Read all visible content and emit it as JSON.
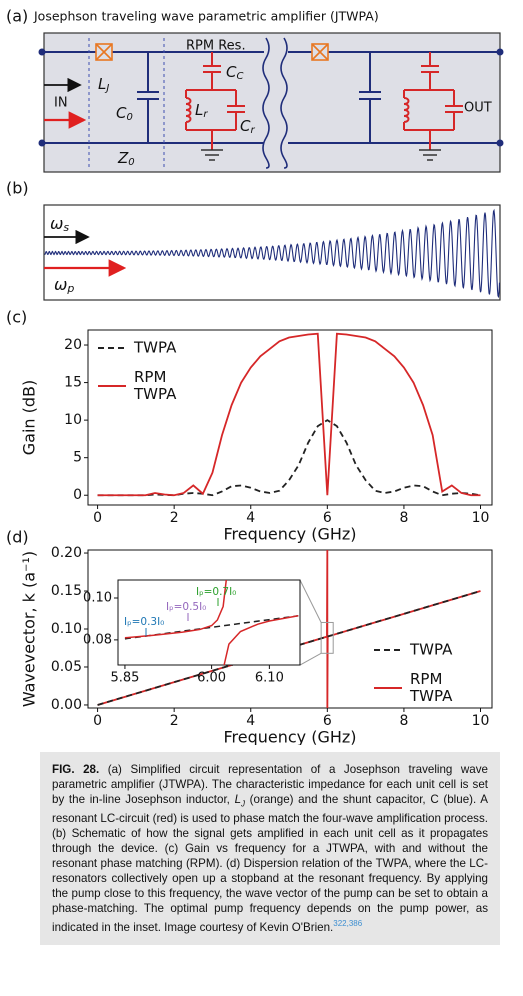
{
  "figure": {
    "panel_a": {
      "label": "(a)",
      "title": "Josephson traveling wave parametric amplifier (JTWPA)",
      "rpm_label": "RPM Res.",
      "in_label": "IN",
      "out_label": "OUT",
      "symbols": [
        {
          "main": "L",
          "sub": "J"
        },
        {
          "main": "C",
          "sub": "0"
        },
        {
          "main": "C",
          "sub": "C"
        },
        {
          "main": "L",
          "sub": "r"
        },
        {
          "main": "C",
          "sub": "r"
        },
        {
          "main": "Z",
          "sub": "0"
        }
      ]
    },
    "panel_b": {
      "label": "(b)",
      "signal": {
        "main": "ω",
        "sub": "s"
      },
      "pump": {
        "main": "ω",
        "sub": "p"
      }
    }
  },
  "chart_data": [
    {
      "type": "line",
      "panel_label": "(c)",
      "xlabel": "Frequency (GHz)",
      "ylabel": "Gain (dB)",
      "x": [
        0,
        0.25,
        0.5,
        0.75,
        1,
        1.25,
        1.5,
        1.75,
        2,
        2.25,
        2.5,
        2.75,
        3,
        3.25,
        3.5,
        3.75,
        4,
        4.25,
        4.5,
        4.75,
        5,
        5.25,
        5.5,
        5.75,
        6,
        6.25,
        6.5,
        6.75,
        7,
        7.25,
        7.5,
        7.75,
        8,
        8.25,
        8.5,
        8.75,
        9,
        9.25,
        9.5,
        9.75,
        10
      ],
      "xlim": [
        -0.25,
        10.3
      ],
      "ylim": [
        -1.3,
        22
      ],
      "xticks": [
        0,
        2,
        4,
        6,
        8,
        10
      ],
      "yticks": [
        0,
        5,
        10,
        15,
        20
      ],
      "legend": "upper left",
      "series": [
        {
          "name": "TWPA",
          "color": "#222222",
          "dash": "dashed",
          "values": [
            0,
            0,
            0,
            0,
            0,
            0,
            0.1,
            0.05,
            0,
            0.2,
            0.3,
            0.2,
            0,
            0.5,
            1.2,
            1.3,
            1.0,
            0.5,
            0.3,
            0.6,
            2.0,
            4.0,
            7.0,
            9.2,
            10,
            9.2,
            7.0,
            4.0,
            2.0,
            0.6,
            0.3,
            0.5,
            1.0,
            1.3,
            1.2,
            0.5,
            0,
            0.2,
            0.3,
            0.2,
            0
          ]
        },
        {
          "name": "RPM TWPA",
          "color": "#d62728",
          "dash": "solid",
          "values": [
            0,
            0,
            0,
            0,
            0,
            0,
            0.3,
            0.1,
            0,
            0.3,
            1.3,
            0.2,
            3,
            8,
            12,
            15,
            17,
            18.5,
            19.5,
            20.5,
            21,
            21.2,
            21.4,
            21.5,
            0,
            21.5,
            21.4,
            21.2,
            21,
            20.5,
            19.5,
            18.5,
            17,
            15,
            12,
            8,
            0.5,
            1.3,
            0.3,
            0,
            0
          ]
        }
      ]
    },
    {
      "type": "line",
      "panel_label": "(d)",
      "xlabel": "Frequency (GHz)",
      "ylabel": "Wavevector, k (a⁻¹)",
      "xlim": [
        -0.25,
        10.3
      ],
      "ylim": [
        -0.004,
        0.204
      ],
      "xticks": [
        0,
        2,
        4,
        6,
        8,
        10
      ],
      "yticks": [
        {
          "value": 0,
          "label": "0.00"
        },
        {
          "value": 0.05,
          "label": "0.05"
        },
        {
          "value": 0.1,
          "label": "0.10"
        },
        {
          "value": 0.15,
          "label": "0.15"
        },
        {
          "value": 0.2,
          "label": "0.20"
        }
      ],
      "legend": "lower right",
      "series": [
        {
          "name": "RPM TWPA",
          "color": "#d62728",
          "dash": "solid",
          "x": [
            0,
            5.99,
            6,
            6,
            6.01,
            10
          ],
          "values": [
            0,
            0.0899,
            0.21,
            -0.01,
            0.0901,
            0.15
          ]
        },
        {
          "name": "TWPA",
          "color": "#222222",
          "dash": "dashed",
          "x": [
            0,
            10
          ],
          "values": [
            0,
            0.15
          ]
        }
      ],
      "inset": {
        "xlim": [
          5.838,
          6.153
        ],
        "ylim": [
          0.068,
          0.1086
        ],
        "xticks": [
          5.85,
          {
            "value": 6.0,
            "label": "6.00"
          },
          {
            "value": 6.1,
            "label": "6.10"
          }
        ],
        "yticks": [
          0.08,
          {
            "value": 0.1,
            "label": "0.10"
          }
        ],
        "series": [
          {
            "color": "#222222",
            "dash": "dashed",
            "x": [
              5.85,
              6.15
            ],
            "values": [
              0.0805,
              0.0915
            ]
          },
          {
            "color": "#d62728",
            "dash": "solid",
            "x": [
              5.85,
              5.9,
              5.95,
              5.98,
              6.0,
              6.01,
              6.02,
              6.026
            ],
            "values": [
              0.081,
              0.0822,
              0.0837,
              0.085,
              0.0868,
              0.0895,
              0.096,
              0.11
            ]
          },
          {
            "color": "#d62728",
            "dash": "solid",
            "x": [
              6.02,
              6.03,
              6.05,
              6.08,
              6.1,
              6.15
            ],
            "values": [
              0.066,
              0.078,
              0.084,
              0.0875,
              0.089,
              0.0915
            ]
          }
        ],
        "annotations": [
          {
            "text": "Iₚ=0.7I₀",
            "color": "#2ca02c"
          },
          {
            "text": "Iₚ=0.5I₀",
            "color": "#9467bd"
          },
          {
            "text": "Iₚ=0.3I₀",
            "color": "#1f77b4"
          }
        ]
      }
    }
  ],
  "caption": {
    "label": "FIG. 28.",
    "text_1": "(a) Simplified circuit representation of a Josephson traveling wave parametric amplifier (JTWPA). The characteristic impedance for each unit cell is set by the in-line Josephson inductor, ",
    "symbol": {
      "main": "L",
      "sub": "J"
    },
    "text_2": " (orange) and the shunt capacitor, C (blue). A resonant LC-circuit (red) is used to phase match the four-wave amplification process. (b) Schematic of how the signal gets amplified in each unit cell as it propagates through the device. (c) Gain vs frequency for a JTWPA, with and without the resonant phase matching (RPM). (d) Dispersion relation of the TWPA, where the LC-resonators collectively open up a stopband at the resonant frequency. By applying the pump close to this frequency, the wave vector of the pump can be set to obtain a phase-matching. The optimal pump frequency depends on the pump power, as indicated in the inset. Image courtesy of Kevin O'Brien.",
    "refs": "322,386"
  }
}
